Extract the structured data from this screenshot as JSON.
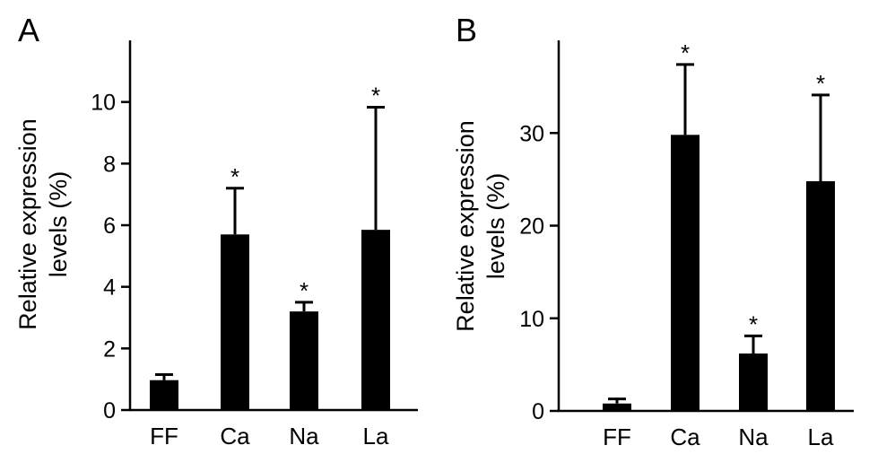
{
  "chart_data": [
    {
      "type": "bar",
      "panel": "A",
      "categories": [
        "FF",
        "Ca",
        "Na",
        "La"
      ],
      "values": [
        0.97,
        5.7,
        3.2,
        5.85
      ],
      "errors": [
        0.18,
        1.5,
        0.3,
        3.98
      ],
      "significance": [
        "",
        "*",
        "*",
        "*"
      ],
      "ylabel_lines": [
        "Relative expression",
        "levels (%)"
      ],
      "ylim": [
        0,
        12
      ],
      "yticks": [
        0,
        2,
        4,
        6,
        8,
        10
      ],
      "bar_color": "#000000"
    },
    {
      "type": "bar",
      "panel": "B",
      "categories": [
        "FF",
        "Ca",
        "Na",
        "La"
      ],
      "values": [
        0.8,
        29.8,
        6.2,
        24.8
      ],
      "errors": [
        0.5,
        7.6,
        1.9,
        9.3
      ],
      "significance": [
        "",
        "*",
        "*",
        "*"
      ],
      "ylabel_lines": [
        "Relative expression",
        "levels (%)"
      ],
      "ylim": [
        0,
        40
      ],
      "yticks": [
        0,
        10,
        20,
        30
      ],
      "bar_color": "#000000"
    }
  ]
}
